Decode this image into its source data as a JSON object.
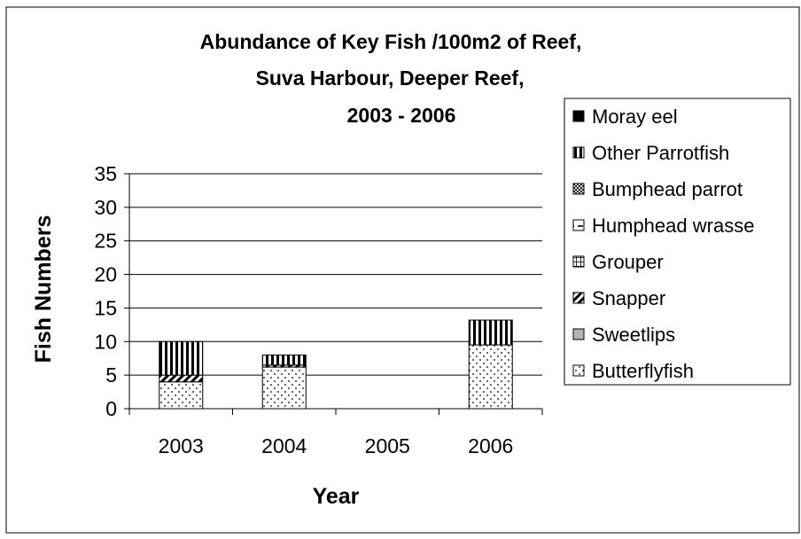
{
  "chart_data": {
    "type": "bar",
    "stacked": true,
    "title_lines": [
      "Abundance of Key Fish /100m2 of Reef,",
      "Suva Harbour, Deeper Reef,",
      "2003 - 2006"
    ],
    "xlabel": "Year",
    "ylabel": "Fish Numbers",
    "categories": [
      "2003",
      "2004",
      "2005",
      "2006"
    ],
    "ylim": [
      0,
      35
    ],
    "yticks": [
      "0",
      "5",
      "10",
      "15",
      "20",
      "25",
      "30",
      "35"
    ],
    "grid": true,
    "legend_position": "right",
    "series": [
      {
        "name": "Butterflyfish",
        "pattern": "dots",
        "values": [
          4,
          6.2,
          0,
          9.5
        ]
      },
      {
        "name": "Sweetlips",
        "pattern": "gray",
        "values": [
          0,
          0,
          0,
          0
        ]
      },
      {
        "name": "Snapper",
        "pattern": "diagonal",
        "values": [
          1,
          0.3,
          0,
          0
        ]
      },
      {
        "name": "Grouper",
        "pattern": "grid",
        "values": [
          0,
          0,
          0,
          0
        ]
      },
      {
        "name": "Humphead wrasse",
        "pattern": "hline",
        "values": [
          0,
          0,
          0,
          0
        ]
      },
      {
        "name": "Bumphead parrot",
        "pattern": "cross",
        "values": [
          0,
          0,
          0,
          0
        ]
      },
      {
        "name": "Other Parrotfish",
        "pattern": "vertical",
        "values": [
          5,
          1.5,
          0,
          3.7
        ]
      },
      {
        "name": "Moray eel",
        "pattern": "black",
        "values": [
          0,
          0,
          0,
          0
        ]
      }
    ],
    "legend_order": [
      "Moray eel",
      "Other Parrotfish",
      "Bumphead parrot",
      "Humphead wrasse",
      "Grouper",
      "Snapper",
      "Sweetlips",
      "Butterflyfish"
    ]
  }
}
